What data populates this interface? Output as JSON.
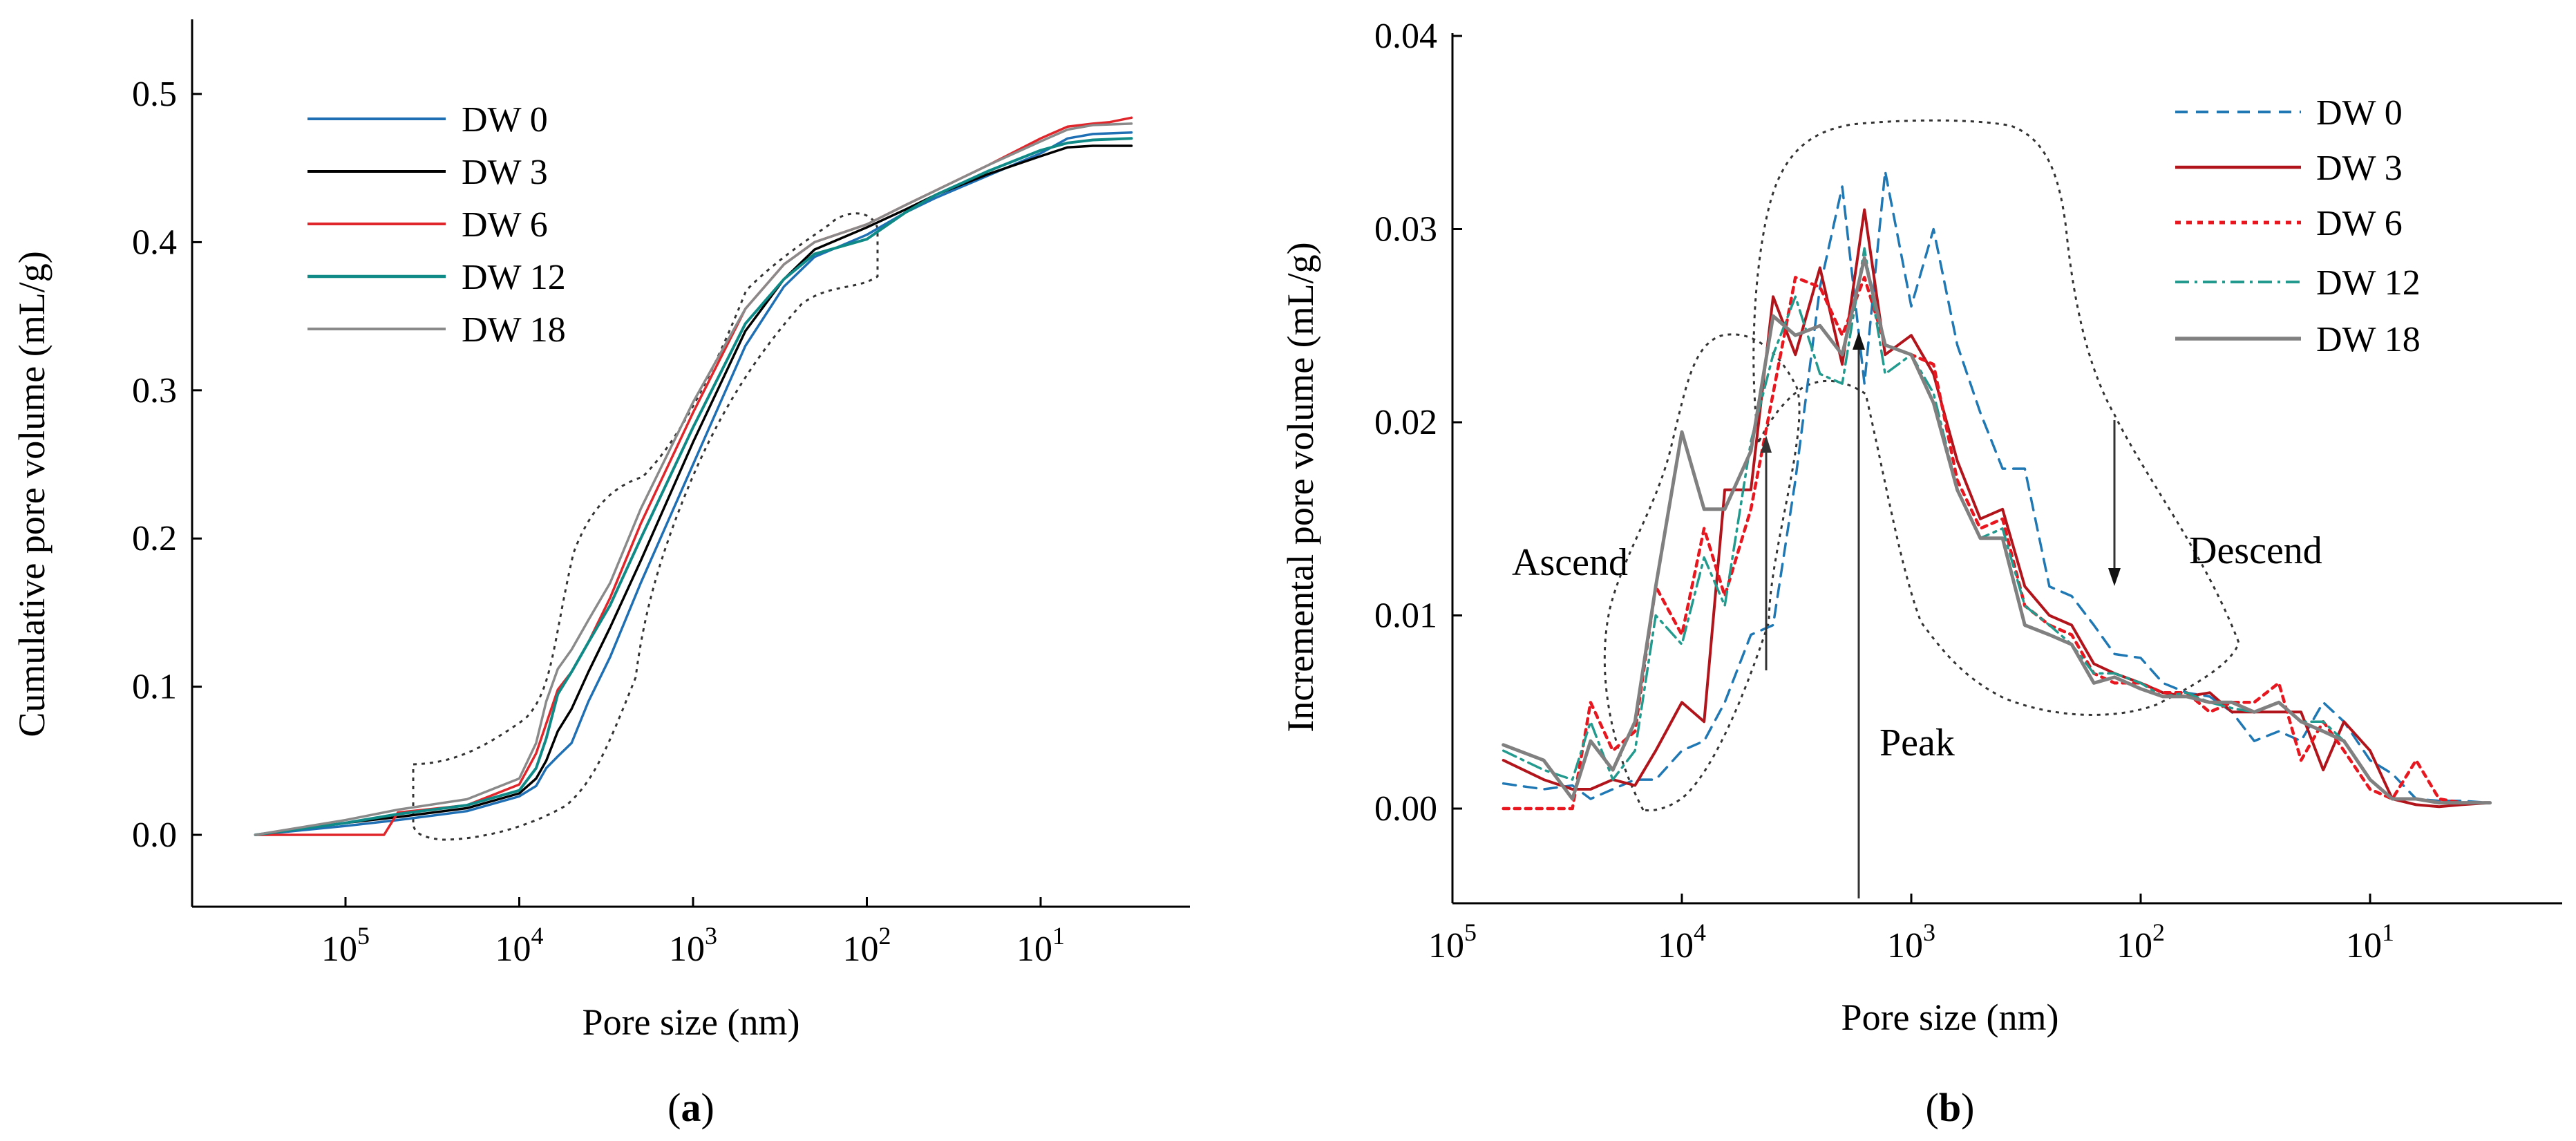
{
  "figure": {
    "panels": [
      {
        "label_open": "(",
        "label_letter": "a",
        "label_close": ")"
      },
      {
        "label_open": "(",
        "label_letter": "b",
        "label_close": ")"
      }
    ]
  },
  "colors": {
    "DW 0": "#1f6fb5",
    "DW 3": "#000000",
    "DW 6": "#e0262b",
    "DW 12": "#0f8a86",
    "DW 18": "#8a8a8a",
    "b_DW 0": "#1f78b4",
    "b_DW 3": "#b2141b",
    "b_DW 6": "#e8161e",
    "b_DW 12": "#229a8e",
    "b_DW 18": "#808080"
  },
  "chart_data": [
    {
      "type": "line",
      "xlabel": "Pore size (nm)",
      "ylabel": "Cumulative pore volume (mL/g)",
      "x_scale": "log",
      "x_reversed": true,
      "xlim": [
        1000000,
        3
      ],
      "ylim": [
        -0.05,
        0.55
      ],
      "x_ticks": [
        {
          "value": 100000,
          "base": "10",
          "exp": "5"
        },
        {
          "value": 10000,
          "base": "10",
          "exp": "4"
        },
        {
          "value": 1000,
          "base": "10",
          "exp": "3"
        },
        {
          "value": 100,
          "base": "10",
          "exp": "2"
        },
        {
          "value": 10,
          "base": "10",
          "exp": "1"
        }
      ],
      "y_ticks": [
        "0.0",
        "0.1",
        "0.2",
        "0.3",
        "0.4",
        "0.5"
      ],
      "y_tick_values": [
        0,
        0.1,
        0.2,
        0.3,
        0.4,
        0.5
      ],
      "legend_placement": "top-left",
      "series": [
        {
          "name": "DW 0",
          "x": [
            330000,
            100000,
            50000,
            20000,
            10000,
            8000,
            7000,
            6000,
            5000,
            4000,
            3000,
            2000,
            1000,
            500,
            300,
            200,
            100,
            60,
            40,
            20,
            10,
            7,
            5,
            3
          ],
          "y": [
            0,
            0.006,
            0.01,
            0.016,
            0.026,
            0.033,
            0.045,
            0.053,
            0.062,
            0.09,
            0.12,
            0.17,
            0.25,
            0.33,
            0.37,
            0.39,
            0.405,
            0.42,
            0.43,
            0.445,
            0.46,
            0.47,
            0.473,
            0.474
          ]
        },
        {
          "name": "DW 3",
          "x": [
            330000,
            100000,
            50000,
            20000,
            10000,
            8000,
            7000,
            6000,
            5000,
            4000,
            3000,
            2000,
            1000,
            500,
            300,
            200,
            100,
            60,
            40,
            20,
            10,
            7,
            5,
            3
          ],
          "y": [
            0,
            0.008,
            0.012,
            0.018,
            0.028,
            0.038,
            0.05,
            0.07,
            0.085,
            0.11,
            0.14,
            0.185,
            0.265,
            0.34,
            0.375,
            0.395,
            0.41,
            0.422,
            0.432,
            0.446,
            0.458,
            0.464,
            0.465,
            0.465
          ]
        },
        {
          "name": "DW 6",
          "x": [
            330000,
            60000,
            50000,
            20000,
            10000,
            8000,
            7000,
            6000,
            5000,
            4000,
            3000,
            2000,
            1000,
            500,
            300,
            200,
            100,
            60,
            40,
            20,
            10,
            7,
            5,
            4,
            3
          ],
          "y": [
            0,
            0,
            0.015,
            0.02,
            0.034,
            0.055,
            0.075,
            0.098,
            0.11,
            0.13,
            0.16,
            0.21,
            0.285,
            0.355,
            0.385,
            0.4,
            0.412,
            0.425,
            0.435,
            0.452,
            0.47,
            0.478,
            0.48,
            0.481,
            0.484
          ]
        },
        {
          "name": "DW 12",
          "x": [
            330000,
            100000,
            50000,
            20000,
            10000,
            8000,
            7000,
            6000,
            5000,
            4000,
            3000,
            2000,
            1000,
            500,
            300,
            200,
            100,
            60,
            40,
            20,
            10,
            7,
            5,
            3
          ],
          "y": [
            0,
            0.008,
            0.014,
            0.02,
            0.03,
            0.045,
            0.065,
            0.095,
            0.11,
            0.13,
            0.155,
            0.2,
            0.275,
            0.345,
            0.375,
            0.392,
            0.402,
            0.42,
            0.432,
            0.448,
            0.462,
            0.467,
            0.469,
            0.47
          ]
        },
        {
          "name": "DW 18",
          "x": [
            330000,
            100000,
            50000,
            20000,
            10000,
            8000,
            7000,
            6000,
            5000,
            4000,
            3000,
            2000,
            1000,
            500,
            300,
            200,
            100,
            60,
            40,
            20,
            10,
            7,
            5,
            3
          ],
          "y": [
            0,
            0.01,
            0.017,
            0.024,
            0.038,
            0.062,
            0.09,
            0.112,
            0.125,
            0.145,
            0.17,
            0.22,
            0.292,
            0.355,
            0.385,
            0.4,
            0.412,
            0.425,
            0.435,
            0.452,
            0.468,
            0.476,
            0.479,
            0.48
          ]
        }
      ]
    },
    {
      "type": "line",
      "xlabel": "Pore size (nm)",
      "ylabel": "Incremental pore volume (mL/g)",
      "x_scale": "log",
      "x_reversed": true,
      "xlim": [
        100000,
        1
      ],
      "ylim": [
        -0.006,
        0.04
      ],
      "x_ticks": [
        {
          "value": 100000,
          "base": "10",
          "exp": "5"
        },
        {
          "value": 10000,
          "base": "10",
          "exp": "4"
        },
        {
          "value": 1000,
          "base": "10",
          "exp": "3"
        },
        {
          "value": 100,
          "base": "10",
          "exp": "2"
        },
        {
          "value": 10,
          "base": "10",
          "exp": "1"
        }
      ],
      "y_ticks": [
        "0.00",
        "0.01",
        "0.02",
        "0.03",
        "0.04"
      ],
      "y_tick_values": [
        0,
        0.01,
        0.02,
        0.03,
        0.04
      ],
      "legend_placement": "top-right",
      "annotations": [
        "Ascend",
        "Peak",
        "Descend"
      ],
      "series": [
        {
          "name": "DW 0",
          "style": "dashed",
          "x": [
            60000,
            40000,
            30000,
            25000,
            20000,
            16000,
            13000,
            10000,
            8000,
            6500,
            5000,
            4000,
            3200,
            2500,
            2000,
            1600,
            1300,
            1000,
            800,
            630,
            500,
            400,
            320,
            250,
            200,
            160,
            130,
            100,
            80,
            63,
            50,
            40,
            32,
            25,
            20,
            16,
            13,
            10,
            8,
            6.3,
            5,
            4,
            3
          ],
          "y": [
            0.0013,
            0.001,
            0.0012,
            0.0005,
            0.001,
            0.0015,
            0.0015,
            0.003,
            0.0035,
            0.0055,
            0.009,
            0.0095,
            0.017,
            0.027,
            0.0322,
            0.022,
            0.033,
            0.026,
            0.03,
            0.024,
            0.0205,
            0.0176,
            0.0176,
            0.0115,
            0.011,
            0.0095,
            0.008,
            0.0078,
            0.0065,
            0.006,
            0.0058,
            0.005,
            0.0035,
            0.004,
            0.0035,
            0.0055,
            0.0045,
            0.0025,
            0.0018,
            0.0005,
            0.0004,
            0.0004,
            0.0003
          ]
        },
        {
          "name": "DW 3",
          "style": "solid",
          "x": [
            60000,
            40000,
            30000,
            25000,
            20000,
            16000,
            13000,
            10000,
            8000,
            6500,
            5000,
            4000,
            3200,
            2500,
            2000,
            1600,
            1300,
            1000,
            800,
            630,
            500,
            400,
            320,
            250,
            200,
            160,
            130,
            100,
            80,
            63,
            50,
            40,
            32,
            25,
            20,
            16,
            13,
            10,
            8,
            6.3,
            5,
            4,
            3
          ],
          "y": [
            0.0025,
            0.0015,
            0.001,
            0.001,
            0.0015,
            0.0012,
            0.003,
            0.0055,
            0.0045,
            0.0165,
            0.0165,
            0.0265,
            0.0235,
            0.028,
            0.023,
            0.031,
            0.0235,
            0.0245,
            0.0225,
            0.018,
            0.015,
            0.0155,
            0.0115,
            0.01,
            0.0095,
            0.0075,
            0.007,
            0.0065,
            0.006,
            0.0058,
            0.006,
            0.005,
            0.005,
            0.005,
            0.005,
            0.002,
            0.0045,
            0.003,
            0.0005,
            0.0002,
            0.0001,
            0.0002,
            0.0003
          ]
        },
        {
          "name": "DW 6",
          "style": "dotted",
          "x": [
            60000,
            40000,
            30000,
            25000,
            20000,
            16000,
            13000,
            10000,
            8000,
            6500,
            5000,
            4000,
            3200,
            2500,
            2000,
            1600,
            1300,
            1000,
            800,
            630,
            500,
            400,
            320,
            250,
            200,
            160,
            130,
            100,
            80,
            63,
            50,
            40,
            32,
            25,
            20,
            16,
            13,
            10,
            8,
            6.3,
            5,
            4,
            3
          ],
          "y": [
            0,
            0,
            0,
            0.0055,
            0.003,
            0.004,
            0.0115,
            0.009,
            0.0145,
            0.011,
            0.0155,
            0.0215,
            0.0275,
            0.027,
            0.0245,
            0.0275,
            0.024,
            0.0235,
            0.023,
            0.017,
            0.0145,
            0.015,
            0.0105,
            0.0095,
            0.009,
            0.007,
            0.0065,
            0.0065,
            0.006,
            0.006,
            0.005,
            0.0055,
            0.0055,
            0.0065,
            0.0025,
            0.0045,
            0.003,
            0.001,
            0.0005,
            0.0025,
            0.0005,
            0.0003,
            0.0003
          ]
        },
        {
          "name": "DW 12",
          "style": "dashdot",
          "x": [
            60000,
            40000,
            30000,
            25000,
            20000,
            16000,
            13000,
            10000,
            8000,
            6500,
            5000,
            4000,
            3200,
            2500,
            2000,
            1600,
            1300,
            1000,
            800,
            630,
            500,
            400,
            320,
            250,
            200,
            160,
            130,
            100,
            80,
            63,
            50,
            40,
            32,
            25,
            20,
            16,
            13,
            10,
            8,
            6.3,
            5,
            4,
            3
          ],
          "y": [
            0.003,
            0.002,
            0.0015,
            0.0045,
            0.0015,
            0.003,
            0.01,
            0.0085,
            0.013,
            0.0105,
            0.019,
            0.0235,
            0.0265,
            0.0225,
            0.022,
            0.029,
            0.0225,
            0.0235,
            0.0215,
            0.0165,
            0.014,
            0.0145,
            0.0105,
            0.0095,
            0.0085,
            0.007,
            0.007,
            0.0065,
            0.0058,
            0.006,
            0.0055,
            0.0052,
            0.005,
            0.0055,
            0.0045,
            0.0045,
            0.0035,
            0.0015,
            0.0005,
            0.0005,
            0.0003,
            0.0003,
            0.0003
          ]
        },
        {
          "name": "DW 18",
          "style": "solid",
          "x": [
            60000,
            40000,
            30000,
            25000,
            20000,
            16000,
            13000,
            10000,
            8000,
            6500,
            5000,
            4000,
            3200,
            2500,
            2000,
            1600,
            1300,
            1000,
            800,
            630,
            500,
            400,
            320,
            250,
            200,
            160,
            130,
            100,
            80,
            63,
            50,
            40,
            32,
            25,
            20,
            16,
            13,
            10,
            8,
            6.3,
            5,
            4,
            3
          ],
          "y": [
            0.0033,
            0.0025,
            0.0005,
            0.0035,
            0.002,
            0.0045,
            0.0115,
            0.0195,
            0.0155,
            0.0155,
            0.0185,
            0.0255,
            0.0245,
            0.025,
            0.0235,
            0.0285,
            0.024,
            0.0235,
            0.021,
            0.0165,
            0.014,
            0.014,
            0.0095,
            0.009,
            0.0085,
            0.0065,
            0.0068,
            0.0062,
            0.0058,
            0.0058,
            0.0055,
            0.0055,
            0.005,
            0.0055,
            0.0045,
            0.004,
            0.0035,
            0.0015,
            0.0005,
            0.0005,
            0.0003,
            0.0003,
            0.0003
          ]
        }
      ]
    }
  ]
}
